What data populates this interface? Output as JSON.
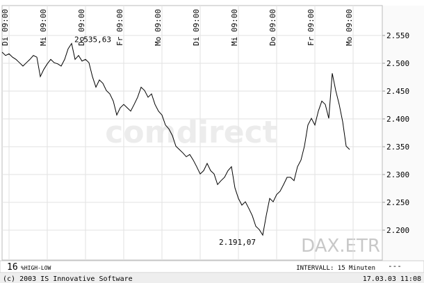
{
  "chart_data": {
    "type": "line",
    "watermark": "comdirect",
    "symbol": "DAX.ETR",
    "period": "16",
    "indicator": "%HIGH-LOW",
    "interval": "INTERVALL: 15 Minuten",
    "indicator_value": "---",
    "copyright": "(c) 2003 IS Innovative Software",
    "timestamp": "17.03.03 11:08",
    "high_label": "2.535,63",
    "low_label": "2.191,07",
    "grid": true,
    "color": "#000000",
    "categories": [
      null,
      null,
      "Di 09:00",
      null,
      null,
      null,
      null,
      null,
      null,
      null,
      null,
      null,
      null,
      "Mi 09:00",
      null,
      null,
      null,
      null,
      null,
      null,
      null,
      null,
      null,
      null,
      "Do 09:00",
      null,
      null,
      null,
      null,
      null,
      null,
      null,
      null,
      null,
      null,
      "Fr 09:00",
      null,
      null,
      null,
      null,
      null,
      null,
      null,
      null,
      null,
      null,
      "Mo 09:00",
      null,
      null,
      null,
      null,
      null,
      null,
      null,
      null,
      null,
      null,
      "Di 09:00",
      null,
      null,
      null,
      null,
      null,
      null,
      null,
      null,
      null,
      null,
      "Mi 09:00",
      null,
      null,
      null,
      null,
      null,
      null,
      null,
      null,
      null,
      null,
      "Do 09:00",
      null,
      null,
      null,
      null,
      null,
      null,
      null,
      null,
      null,
      null,
      "Fr 09:00",
      null,
      null,
      null,
      null,
      null,
      null,
      null,
      null,
      null,
      null,
      "Mo 09:00",
      null,
      null,
      null,
      null,
      null,
      null,
      null,
      null
    ],
    "values": [
      2520,
      2514,
      2517,
      2511,
      2507,
      2501,
      2495,
      2501,
      2507,
      2514,
      2511,
      2476,
      2489,
      2499,
      2507,
      2501,
      2499,
      2495,
      2507,
      2526,
      2535.63,
      2507,
      2514,
      2504,
      2507,
      2501,
      2476,
      2457,
      2470,
      2464,
      2451,
      2445,
      2432,
      2407,
      2420,
      2426,
      2420,
      2414,
      2426,
      2439,
      2457,
      2451,
      2439,
      2445,
      2426,
      2414,
      2407,
      2389,
      2382,
      2370,
      2351,
      2345,
      2339,
      2332,
      2336,
      2326,
      2314,
      2301,
      2307,
      2320,
      2307,
      2301,
      2282,
      2289,
      2295,
      2307,
      2314,
      2276,
      2257,
      2245,
      2251,
      2239,
      2226,
      2207,
      2201,
      2191.07,
      2226,
      2257,
      2251,
      2264,
      2270,
      2282,
      2295,
      2295,
      2289,
      2314,
      2326,
      2351,
      2389,
      2401,
      2389,
      2414,
      2432,
      2426,
      2401,
      2482,
      2451,
      2426,
      2395,
      2351,
      2345,
      null,
      null,
      null,
      null,
      null,
      null,
      null,
      null,
      null
    ],
    "ylim": [
      2150,
      2600
    ],
    "yticks": [
      {
        "value": 2200,
        "label": "2.200"
      },
      {
        "value": 2250,
        "label": "2.250"
      },
      {
        "value": 2300,
        "label": "2.300"
      },
      {
        "value": 2350,
        "label": "2.350"
      },
      {
        "value": 2400,
        "label": "2.400"
      },
      {
        "value": 2450,
        "label": "2.450"
      },
      {
        "value": 2500,
        "label": "2.500"
      },
      {
        "value": 2550,
        "label": "2.550"
      }
    ]
  }
}
